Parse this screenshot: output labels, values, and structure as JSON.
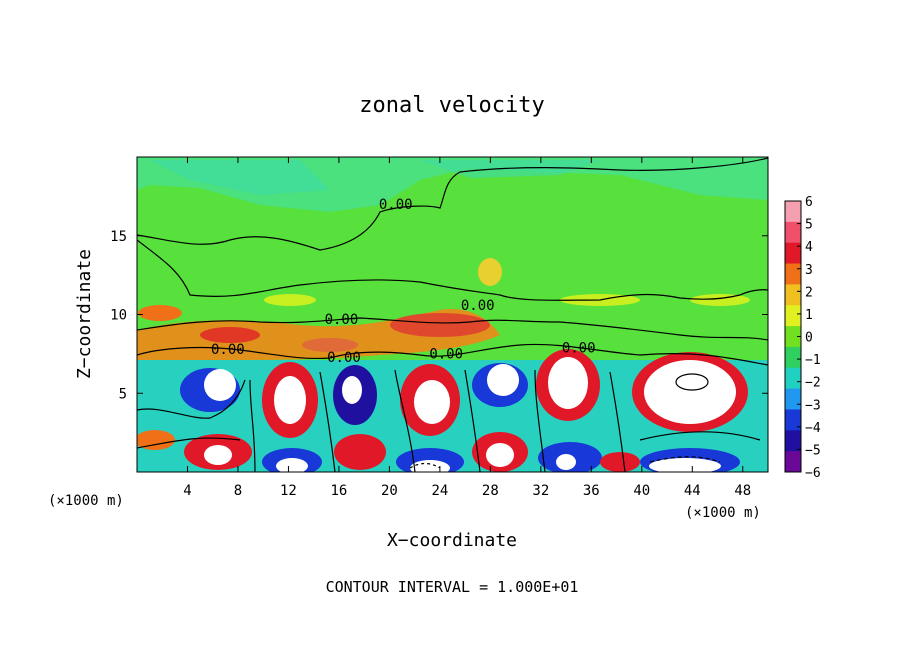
{
  "chart_data": {
    "type": "heatmap",
    "title": "zonal velocity",
    "xlabel": "X−coordinate",
    "ylabel": "Z−coordinate",
    "x_unit_left": "(×1000 m)",
    "x_unit_right": "(×1000 m)",
    "xlim": [
      0,
      50
    ],
    "ylim": [
      0,
      20
    ],
    "x_ticks": [
      "4",
      "8",
      "12",
      "16",
      "20",
      "24",
      "28",
      "32",
      "36",
      "40",
      "44",
      "48"
    ],
    "x_tick_values": [
      4,
      8,
      12,
      16,
      20,
      24,
      28,
      32,
      36,
      40,
      44,
      48
    ],
    "y_ticks": [
      "5",
      "10",
      "15"
    ],
    "y_tick_values": [
      5,
      10,
      15
    ],
    "colorbar": {
      "labels": [
        "6",
        "5",
        "4",
        "3",
        "2",
        "1",
        "0",
        "−1",
        "−2",
        "−3",
        "−4",
        "−5",
        "−6"
      ],
      "values": [
        6,
        5,
        4,
        3,
        2,
        1,
        0,
        -1,
        -2,
        -3,
        -4,
        -5,
        -6
      ],
      "colors": [
        "#f4a0b0",
        "#f0506a",
        "#e01828",
        "#f07018",
        "#f0c020",
        "#e0f020",
        "#70e020",
        "#30d060",
        "#20d0c0",
        "#2098f0",
        "#1838d8",
        "#2010a0",
        "#6a0898"
      ]
    },
    "contour_labels": [
      {
        "text": "0.00",
        "x": 20.5,
        "z": 16.7
      },
      {
        "text": "0.00",
        "x": 16.2,
        "z": 9.4
      },
      {
        "text": "0.00",
        "x": 7.2,
        "z": 7.5
      },
      {
        "text": "0.00",
        "x": 16.4,
        "z": 7.0
      },
      {
        "text": "0.00",
        "x": 24.5,
        "z": 7.2
      },
      {
        "text": "0.00",
        "x": 27.0,
        "z": 10.3
      },
      {
        "text": "0.00",
        "x": 35.0,
        "z": 7.6
      }
    ],
    "footer": "CONTOUR INTERVAL =  1.000E+01",
    "grid": false,
    "legend": "colorbar right"
  }
}
